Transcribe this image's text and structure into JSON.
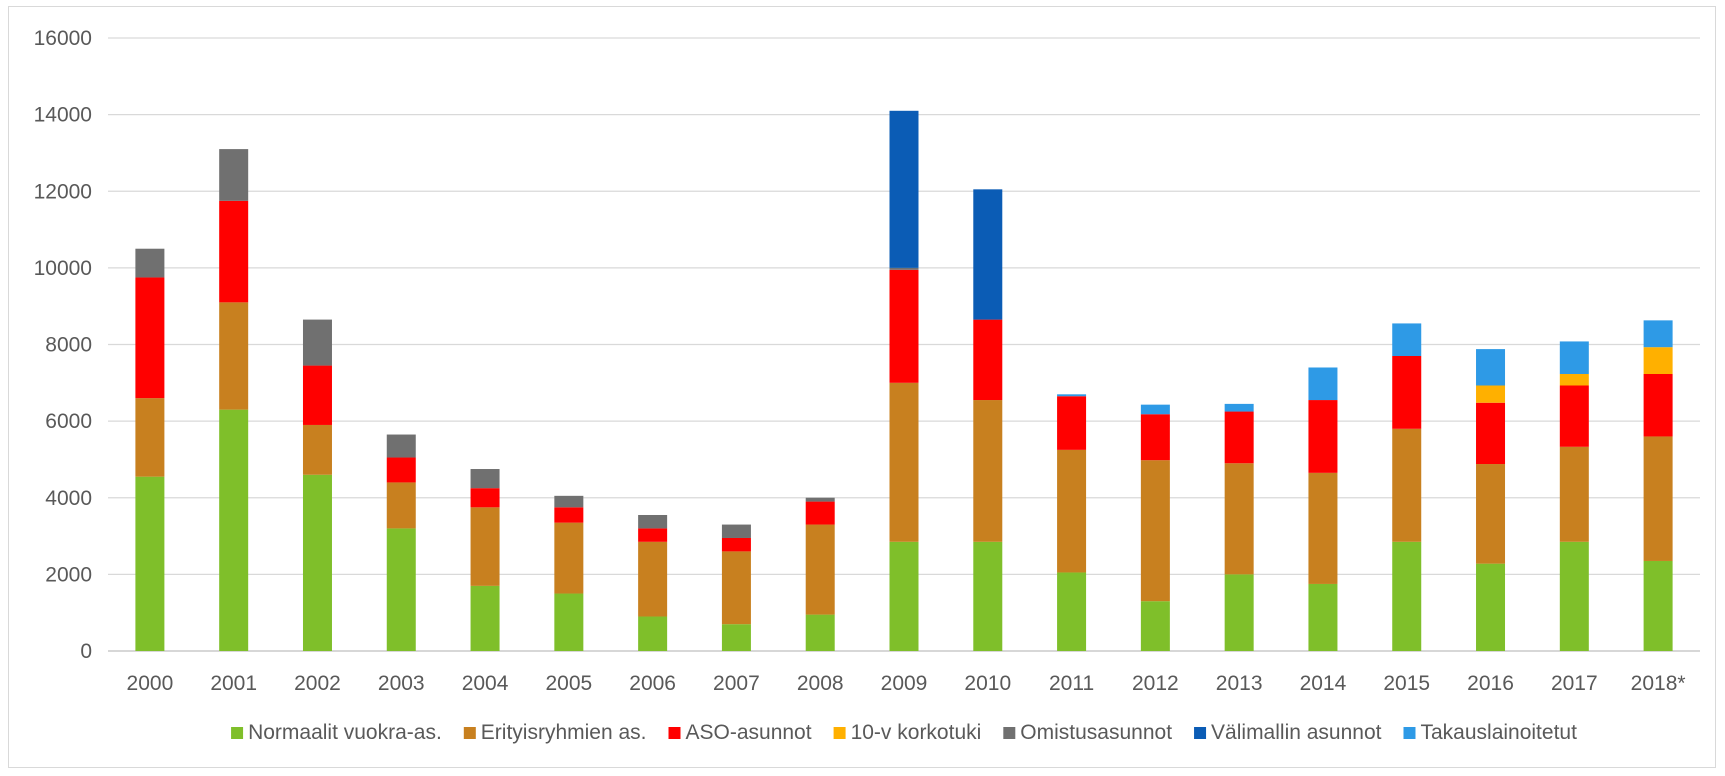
{
  "chart_data": {
    "type": "bar",
    "stacked": true,
    "title": "",
    "xlabel": "",
    "ylabel": "",
    "ylim": [
      0,
      16000
    ],
    "yticks": [
      0,
      2000,
      4000,
      6000,
      8000,
      10000,
      12000,
      14000,
      16000
    ],
    "grid": true,
    "legend_position": "bottom",
    "categories": [
      "2000",
      "2001",
      "2002",
      "2003",
      "2004",
      "2005",
      "2006",
      "2007",
      "2008",
      "2009",
      "2010",
      "2011",
      "2012",
      "2013",
      "2014",
      "2015",
      "2016",
      "2017",
      "2018*"
    ],
    "series": [
      {
        "name": "Normaalit vuokra-as.",
        "color": "#7fbf2a",
        "values": [
          4550,
          6300,
          4600,
          3200,
          1700,
          1500,
          900,
          700,
          950,
          2850,
          2850,
          2050,
          1300,
          2000,
          1750,
          2850,
          2280,
          2850,
          2350
        ]
      },
      {
        "name": "Erityisryhmien as.",
        "color": "#c8801f",
        "values": [
          2050,
          2800,
          1300,
          1200,
          2050,
          1850,
          1950,
          1900,
          2350,
          4150,
          3700,
          3200,
          3680,
          2900,
          2900,
          2950,
          2600,
          2480,
          3250
        ]
      },
      {
        "name": "ASO-asunnot",
        "color": "#ff0000",
        "values": [
          3150,
          2650,
          1550,
          650,
          500,
          400,
          350,
          350,
          600,
          2950,
          2100,
          1400,
          1200,
          1350,
          1900,
          1900,
          1600,
          1600,
          1630
        ]
      },
      {
        "name": "10-v korkotuki",
        "color": "#ffb000",
        "values": [
          0,
          0,
          0,
          0,
          0,
          0,
          0,
          0,
          0,
          0,
          0,
          0,
          0,
          0,
          0,
          0,
          450,
          300,
          700
        ]
      },
      {
        "name": "Omistusasunnot",
        "color": "#707070",
        "values": [
          750,
          1350,
          1200,
          600,
          500,
          300,
          350,
          350,
          100,
          50,
          0,
          0,
          0,
          0,
          0,
          0,
          0,
          0,
          0
        ]
      },
      {
        "name": "Välimallin asunnot",
        "color": "#0b5cb5",
        "values": [
          0,
          0,
          0,
          0,
          0,
          0,
          0,
          0,
          0,
          4100,
          3400,
          0,
          0,
          0,
          0,
          0,
          0,
          0,
          0
        ]
      },
      {
        "name": "Takauslainoitetut",
        "color": "#2e9ae6",
        "values": [
          0,
          0,
          0,
          0,
          0,
          0,
          0,
          0,
          0,
          0,
          0,
          50,
          250,
          200,
          850,
          850,
          950,
          850,
          700
        ]
      }
    ]
  }
}
